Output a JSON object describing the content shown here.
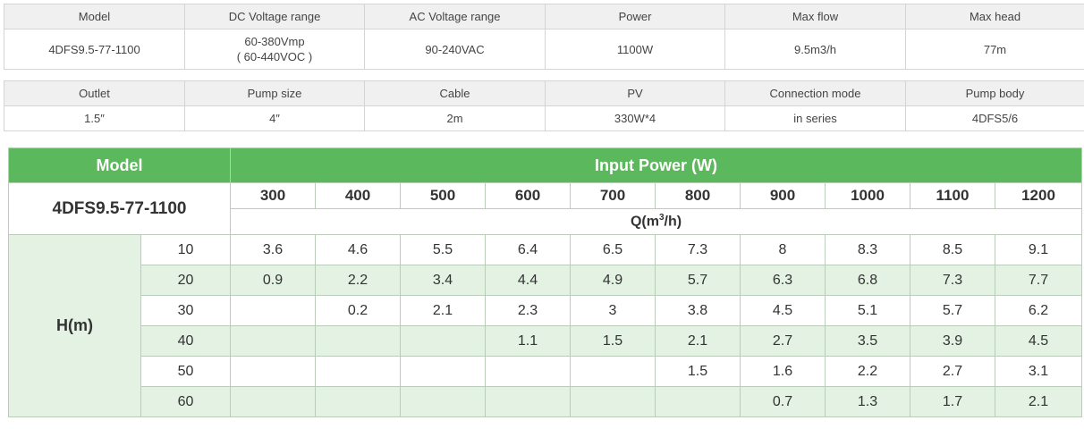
{
  "spec1": {
    "headers": [
      "Model",
      "DC Voltage range",
      "AC Voltage range",
      "Power",
      "Max flow",
      "Max head"
    ],
    "values": [
      "4DFS9.5-77-1100",
      "60-380Vmp",
      "90-240VAC",
      "1100W",
      "9.5m3/h",
      "77m"
    ],
    "dc_voc": "( 60-440VOC )"
  },
  "spec2": {
    "headers": [
      "Outlet",
      "Pump size",
      "Cable",
      "PV",
      "Connection mode",
      "Pump body"
    ],
    "values": [
      "1.5″",
      "4″",
      "2m",
      "330W*4",
      "in series",
      "4DFS5/6"
    ]
  },
  "perf": {
    "model_label": "Model",
    "input_power_label": "Input Power (W)",
    "model_value": "4DFS9.5-77-1100",
    "flow_label_prefix": "Q(m",
    "flow_label_sup": "3",
    "flow_label_suffix": "/h)",
    "head_label": "H(m)",
    "powers": [
      "300",
      "400",
      "500",
      "600",
      "700",
      "800",
      "900",
      "1000",
      "1100",
      "1200"
    ],
    "rows": [
      {
        "head": "10",
        "q": [
          "3.6",
          "4.6",
          "5.5",
          "6.4",
          "6.5",
          "7.3",
          "8",
          "8.3",
          "8.5",
          "9.1"
        ]
      },
      {
        "head": "20",
        "q": [
          "0.9",
          "2.2",
          "3.4",
          "4.4",
          "4.9",
          "5.7",
          "6.3",
          "6.8",
          "7.3",
          "7.7"
        ]
      },
      {
        "head": "30",
        "q": [
          "",
          "0.2",
          "2.1",
          "2.3",
          "3",
          "3.8",
          "4.5",
          "5.1",
          "5.7",
          "6.2"
        ]
      },
      {
        "head": "40",
        "q": [
          "",
          "",
          "",
          "1.1",
          "1.5",
          "2.1",
          "2.7",
          "3.5",
          "3.9",
          "4.5"
        ]
      },
      {
        "head": "50",
        "q": [
          "",
          "",
          "",
          "",
          "",
          "1.5",
          "1.6",
          "2.2",
          "2.7",
          "3.1"
        ]
      },
      {
        "head": "60",
        "q": [
          "",
          "",
          "",
          "",
          "",
          "",
          "0.7",
          "1.3",
          "1.7",
          "2.1"
        ]
      }
    ]
  }
}
